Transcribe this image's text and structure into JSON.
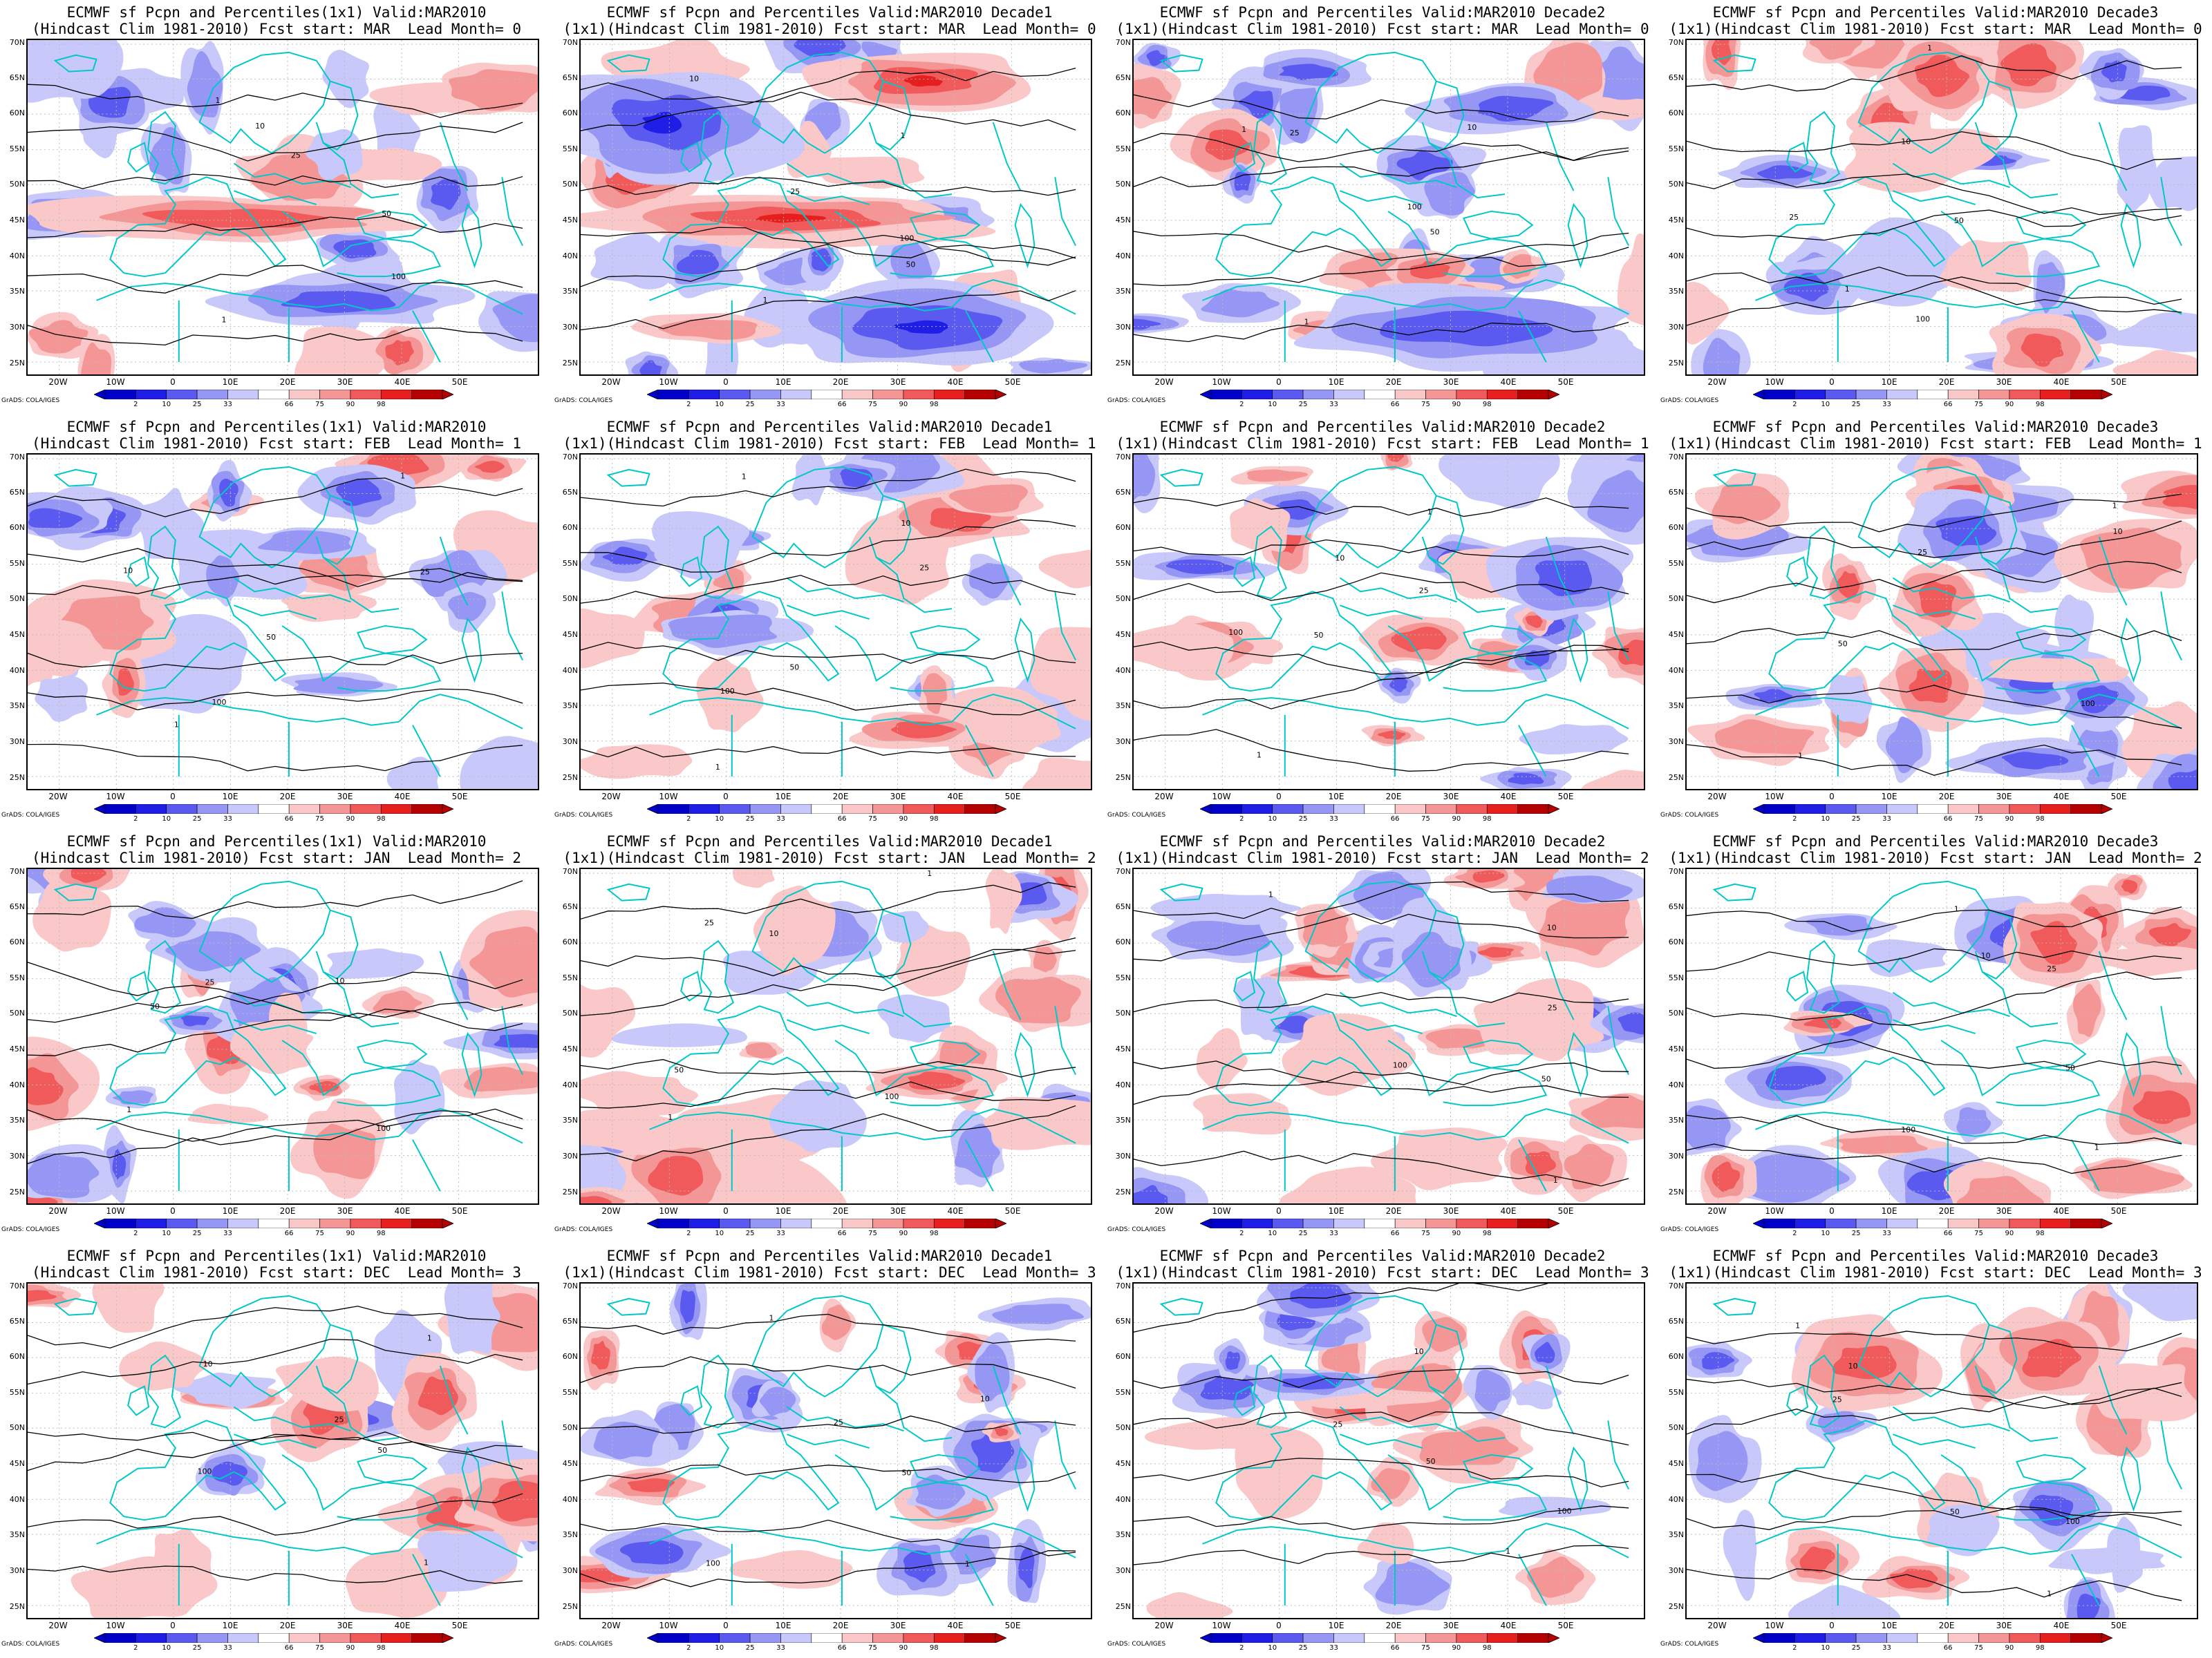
{
  "figure": {
    "credit": "GrADS: COLA/IGES",
    "lat_labels": [
      "70N",
      "65N",
      "60N",
      "55N",
      "50N",
      "45N",
      "40N",
      "35N",
      "30N",
      "25N"
    ],
    "lon_labels": [
      "20W",
      "10W",
      "0",
      "10E",
      "20E",
      "30E",
      "40E",
      "50E"
    ],
    "colorbar": {
      "ticks": [
        "2",
        "10",
        "25",
        "33",
        "66",
        "75",
        "90",
        "98"
      ],
      "colors": [
        "#0000c8",
        "#1e1ee6",
        "#5a5af0",
        "#9696f5",
        "#c8c8fa",
        "#ffffff",
        "#fac8c8",
        "#f59696",
        "#f05a5a",
        "#e61e1e",
        "#b40000"
      ]
    },
    "ocean_coast_color": "#00c8c8",
    "contour_color": "#000000",
    "contour_levels": [
      "1",
      "10",
      "25",
      "50",
      "100"
    ]
  },
  "panels": [
    {
      "title1": "ECMWF sf Pcpn and Percentiles(1x1) Valid:MAR2010",
      "title2": "(Hindcast Clim 1981-2010) Fcst start: MAR  Lead Month= 0"
    },
    {
      "title1": "ECMWF sf Pcpn and Percentiles Valid:MAR2010 Decade1",
      "title2": "(1x1)(Hindcast Clim 1981-2010) Fcst start: MAR  Lead Month= 0"
    },
    {
      "title1": "ECMWF sf Pcpn and Percentiles Valid:MAR2010 Decade2",
      "title2": "(1x1)(Hindcast Clim 1981-2010) Fcst start: MAR  Lead Month= 0"
    },
    {
      "title1": "ECMWF sf Pcpn and Percentiles Valid:MAR2010 Decade3",
      "title2": "(1x1)(Hindcast Clim 1981-2010) Fcst start: MAR  Lead Month= 0"
    },
    {
      "title1": "ECMWF sf Pcpn and Percentiles(1x1) Valid:MAR2010",
      "title2": "(Hindcast Clim 1981-2010) Fcst start: FEB  Lead Month= 1"
    },
    {
      "title1": "ECMWF sf Pcpn and Percentiles Valid:MAR2010 Decade1",
      "title2": "(1x1)(Hindcast Clim 1981-2010) Fcst start: FEB  Lead Month= 1"
    },
    {
      "title1": "ECMWF sf Pcpn and Percentiles Valid:MAR2010 Decade2",
      "title2": "(1x1)(Hindcast Clim 1981-2010) Fcst start: FEB  Lead Month= 1"
    },
    {
      "title1": "ECMWF sf Pcpn and Percentiles Valid:MAR2010 Decade3",
      "title2": "(1x1)(Hindcast Clim 1981-2010) Fcst start: FEB  Lead Month= 1"
    },
    {
      "title1": "ECMWF sf Pcpn and Percentiles(1x1) Valid:MAR2010",
      "title2": "(Hindcast Clim 1981-2010) Fcst start: JAN  Lead Month= 2"
    },
    {
      "title1": "ECMWF sf Pcpn and Percentiles Valid:MAR2010 Decade1",
      "title2": "(1x1)(Hindcast Clim 1981-2010) Fcst start: JAN  Lead Month= 2"
    },
    {
      "title1": "ECMWF sf Pcpn and Percentiles Valid:MAR2010 Decade2",
      "title2": "(1x1)(Hindcast Clim 1981-2010) Fcst start: JAN  Lead Month= 2"
    },
    {
      "title1": "ECMWF sf Pcpn and Percentiles Valid:MAR2010 Decade3",
      "title2": "(1x1)(Hindcast Clim 1981-2010) Fcst start: JAN  Lead Month= 2"
    },
    {
      "title1": "ECMWF sf Pcpn and Percentiles(1x1) Valid:MAR2010",
      "title2": "(Hindcast Clim 1981-2010) Fcst start: DEC  Lead Month= 3"
    },
    {
      "title1": "ECMWF sf Pcpn and Percentiles Valid:MAR2010 Decade1",
      "title2": "(1x1)(Hindcast Clim 1981-2010) Fcst start: DEC  Lead Month= 3"
    },
    {
      "title1": "ECMWF sf Pcpn and Percentiles Valid:MAR2010 Decade2",
      "title2": "(1x1)(Hindcast Clim 1981-2010) Fcst start: DEC  Lead Month= 3"
    },
    {
      "title1": "ECMWF sf Pcpn and Percentiles Valid:MAR2010 Decade3",
      "title2": "(1x1)(Hindcast Clim 1981-2010) Fcst start: DEC  Lead Month= 3"
    }
  ]
}
